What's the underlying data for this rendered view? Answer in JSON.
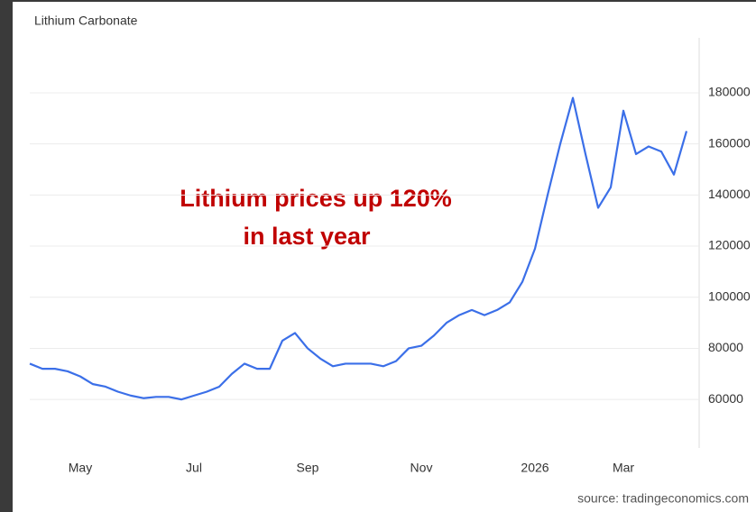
{
  "chart_data": {
    "type": "line",
    "title": "Lithium Carbonate",
    "annotation": [
      "Lithium prices up 120%",
      "in last year"
    ],
    "source": "source: tradingeconomics.com",
    "categories": [
      null,
      null,
      null,
      null,
      "May",
      null,
      null,
      null,
      null,
      null,
      null,
      null,
      null,
      "Jul",
      null,
      null,
      null,
      null,
      null,
      null,
      null,
      null,
      "Sep",
      null,
      null,
      null,
      null,
      null,
      null,
      null,
      null,
      "Nov",
      null,
      null,
      null,
      null,
      null,
      null,
      null,
      null,
      "2026",
      null,
      null,
      null,
      null,
      null,
      null,
      "Mar",
      null,
      null,
      null,
      null,
      null
    ],
    "series": [
      {
        "name": "Lithium Carbonate",
        "color": "#3b6fe8",
        "values": [
          74000,
          72000,
          72000,
          71000,
          69000,
          66000,
          65000,
          63000,
          61500,
          60500,
          61000,
          61000,
          60000,
          61500,
          63000,
          65000,
          70000,
          74000,
          72000,
          72000,
          83000,
          86000,
          80000,
          76000,
          73000,
          74000,
          74000,
          74000,
          73000,
          75000,
          80000,
          81000,
          85000,
          90000,
          93000,
          95000,
          93000,
          95000,
          98000,
          106000,
          119000,
          140000,
          160000,
          178000,
          156000,
          135000,
          143000,
          173000,
          156000,
          159000,
          157000,
          148000,
          165000
        ]
      }
    ],
    "ylim": [
      41000,
      201500
    ],
    "yticks": [
      60000,
      80000,
      100000,
      120000,
      140000,
      160000,
      180000
    ],
    "grid": true
  }
}
